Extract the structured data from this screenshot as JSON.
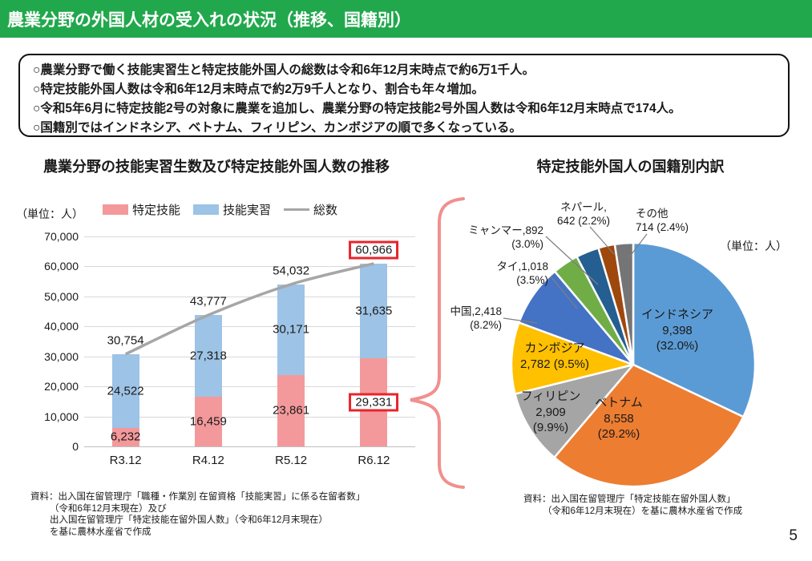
{
  "header": {
    "title": "農業分野の外国人材の受入れの状況（推移、国籍別）"
  },
  "summary": {
    "points": [
      "○農業分野で働く技能実習生と特定技能外国人の総数は令和6年12月末時点で約6万1千人。",
      "○特定技能外国人数は令和6年12月末時点で約2万9千人となり、割合も年々増加。",
      "○令和5年6月に特定技能2号の対象に農業を追加し、農業分野の特定技能2号外国人数は令和6年12月末時点で174人。",
      "○国籍別ではインドネシア、ベトナム、フィリピン、カンボジアの順で多くなっている。"
    ]
  },
  "footer": {
    "page_number": "5"
  },
  "colors": {
    "header_green": "#21A84C",
    "highlight_box_red": "#E8242B",
    "brace_pink": "#F0908E",
    "grid": "#D9D9D9"
  },
  "chart_data": [
    {
      "id": "bar-transition",
      "type": "bar",
      "title": "農業分野の技能実習生数及び特定技能外国人数の推移",
      "unit_label": "（単位：人）",
      "categories": [
        "R3.12",
        "R4.12",
        "R5.12",
        "R6.12"
      ],
      "stacked": true,
      "grid": true,
      "legend_position": "top",
      "ylim": [
        0,
        70000
      ],
      "ytick_labels": [
        "0",
        "10,000",
        "20,000",
        "30,000",
        "40,000",
        "50,000",
        "60,000",
        "70,000"
      ],
      "series": [
        {
          "name": "特定技能",
          "chart_type": "bar",
          "color": "#F4999B",
          "values": [
            6232,
            16459,
            23861,
            29331
          ],
          "labels": [
            "6,232",
            "16,459",
            "23,861",
            "29,331"
          ],
          "boxed_label_indices": [
            3
          ]
        },
        {
          "name": "技能実習",
          "chart_type": "bar",
          "color": "#9DC3E6",
          "values": [
            24522,
            27318,
            30171,
            31635
          ],
          "labels": [
            "24,522",
            "27,318",
            "30,171",
            "31,635"
          ],
          "boxed_label_indices": []
        },
        {
          "name": "総数",
          "chart_type": "line",
          "color": "#A6A6A6",
          "values": [
            30754,
            43777,
            54032,
            60966
          ],
          "labels": [
            "30,754",
            "43,777",
            "54,032",
            "60,966"
          ],
          "boxed_label_indices": [
            3
          ]
        }
      ],
      "source": [
        "資料：出入国在留管理庁「職種・作業別 在留資格「技能実習」に係る在留者数」",
        "（令和6年12月末現在）及び",
        "出入国在留管理庁「特定技能在留外国人数」（令和6年12月末現在）",
        "を基に農林水産省で作成"
      ]
    },
    {
      "id": "pie-nationality",
      "type": "pie",
      "title": "特定技能外国人の国籍別内訳",
      "unit_label": "（単位：人）",
      "total": 29331,
      "start_angle": "top",
      "direction": "clockwise",
      "slices": [
        {
          "name": "インドネシア",
          "value": 9398,
          "pct": 32.0,
          "color": "#5B9BD5",
          "label_lines": [
            "インドネシア",
            "9,398",
            "(32.0%)"
          ],
          "placement": "inside",
          "anchor": "center",
          "label_pos": [
            285,
            148
          ],
          "leader": null
        },
        {
          "name": "ベトナム",
          "value": 8558,
          "pct": 29.2,
          "color": "#ED7D31",
          "label_lines": [
            "ベトナム",
            "8,558",
            "(29.2%)"
          ],
          "placement": "inside",
          "anchor": "center",
          "label_pos": [
            212,
            258
          ],
          "leader": null
        },
        {
          "name": "フィリピン",
          "value": 2909,
          "pct": 9.9,
          "color": "#A5A5A5",
          "label_lines": [
            "フィリピン",
            "2,909",
            "(9.9%)"
          ],
          "placement": "inside",
          "anchor": "center",
          "label_pos": [
            127,
            250
          ],
          "leader": null
        },
        {
          "name": "カンボジア",
          "value": 2782,
          "pct": 9.5,
          "color": "#FFC000",
          "label_lines": [
            "カンボジア",
            "2,782 (9.5%)"
          ],
          "placement": "inside",
          "anchor": "center",
          "label_pos": [
            132,
            190
          ],
          "leader": null
        },
        {
          "name": "中国",
          "value": 2418,
          "pct": 8.2,
          "color": "#4472C4",
          "label_lines": [
            "中国,2,418",
            "(8.2%)"
          ],
          "placement": "outside",
          "anchor": "right",
          "label_pos": [
            66,
            146
          ],
          "leader": [
            68,
            162,
            110,
            168
          ]
        },
        {
          "name": "タイ",
          "value": 1018,
          "pct": 3.5,
          "color": "#70AD47",
          "label_lines": [
            "タイ,1,018",
            "(3.5%)"
          ],
          "placement": "outside",
          "anchor": "right",
          "label_pos": [
            124,
            90
          ],
          "leader": [
            127,
            110,
            160,
            150
          ]
        },
        {
          "name": "ミャンマー",
          "value": 892,
          "pct": 3.0,
          "color": "#255E91",
          "label_lines": [
            "ミャンマー,892",
            "(3.0%)"
          ],
          "placement": "outside",
          "anchor": "right",
          "label_pos": [
            118,
            45
          ],
          "leader": [
            121,
            60,
            186,
            120
          ]
        },
        {
          "name": "ネパール",
          "value": 642,
          "pct": 2.2,
          "color": "#9E480E",
          "label_lines": [
            "ネパール,",
            "642 (2.2%)"
          ],
          "placement": "outside",
          "anchor": "center",
          "label_pos": [
            168,
            16
          ],
          "leader": [
            176,
            48,
            206,
            82
          ]
        },
        {
          "name": "その他",
          "value": 714,
          "pct": 2.4,
          "color": "#757575",
          "label_lines": [
            "その他",
            "714 (2.4%)"
          ],
          "placement": "outside",
          "anchor": "left",
          "label_pos": [
            233,
            24
          ],
          "leader": [
            247,
            57,
            225,
            86
          ]
        }
      ],
      "source": [
        "資料：出入国在留管理庁「特定技能在留外国人数」",
        "（令和6年12月末現在）を基に農林水産省で作成"
      ]
    }
  ]
}
